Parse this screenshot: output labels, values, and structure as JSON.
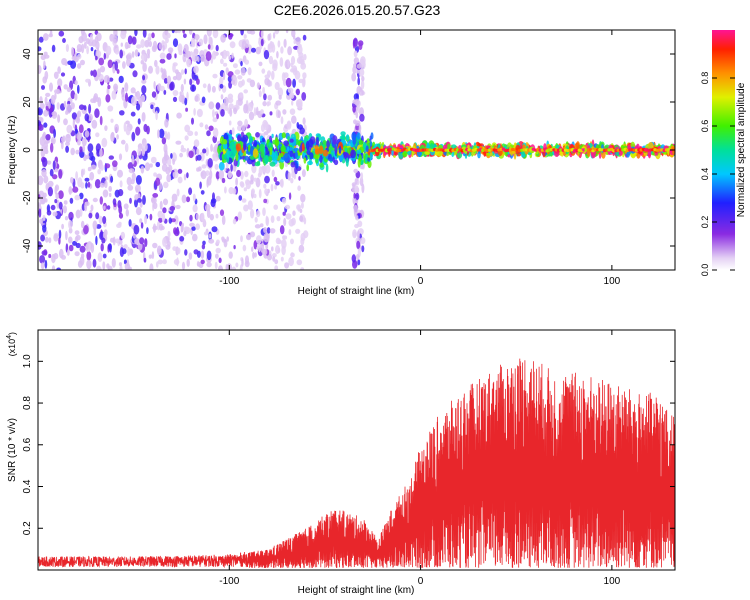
{
  "title": "C2E6.2026.015.20.57.G23",
  "colors": {
    "snr_line": "#e8262b",
    "axis": "#000000"
  },
  "chart_data": [
    {
      "type": "heatmap",
      "title": "C2E6.2026.015.20.57.G23",
      "xlabel": "Height of straight line (km)",
      "ylabel": "Frequency (Hz)",
      "xlim": [
        -200,
        133
      ],
      "ylim": [
        -50,
        50
      ],
      "xticks": [
        -100,
        0,
        100
      ],
      "yticks": [
        -40,
        -20,
        0,
        20,
        40
      ],
      "colorbar": {
        "label": "Normalized spectral amplitude",
        "range": [
          0,
          1
        ],
        "ticks": [
          "0.0",
          "0.2",
          "0.4",
          "0.6",
          "0.8"
        ]
      },
      "description_regions": [
        {
          "x_from": -200,
          "x_to": -60,
          "freq_spread": 50,
          "density": "high",
          "amplitude": 0.2
        },
        {
          "x_from": -35,
          "x_to": -30,
          "freq_spread": 50,
          "density": "low",
          "amplitude": 0.1
        },
        {
          "x_from": -105,
          "x_to": -25,
          "freq_spread": 8,
          "density": "high",
          "amplitude": 0.5
        },
        {
          "x_from": -25,
          "x_to": 133,
          "freq_spread": 3,
          "density": "high",
          "amplitude": 0.8
        }
      ]
    },
    {
      "type": "line",
      "xlabel": "Height of straight line (km)",
      "ylabel": "SNR (10 * v/v)",
      "yunit_label": "(x10",
      "yunit_exp": "4",
      "xlim": [
        -200,
        133
      ],
      "ylim": [
        0,
        1.15
      ],
      "xticks": [
        -100,
        0,
        100
      ],
      "yticks": [
        0.2,
        0.4,
        0.6,
        0.8,
        1.0
      ],
      "envelope": [
        [
          -200,
          0.06
        ],
        [
          -150,
          0.06
        ],
        [
          -100,
          0.07
        ],
        [
          -80,
          0.1
        ],
        [
          -60,
          0.2
        ],
        [
          -45,
          0.3
        ],
        [
          -30,
          0.25
        ],
        [
          -22,
          0.15
        ],
        [
          -15,
          0.3
        ],
        [
          -5,
          0.45
        ],
        [
          0,
          0.6
        ],
        [
          10,
          0.75
        ],
        [
          20,
          0.85
        ],
        [
          35,
          0.95
        ],
        [
          55,
          1.05
        ],
        [
          70,
          0.95
        ],
        [
          85,
          0.95
        ],
        [
          100,
          0.9
        ],
        [
          115,
          0.85
        ],
        [
          125,
          0.85
        ],
        [
          130,
          0.75
        ],
        [
          133,
          0.75
        ]
      ]
    }
  ]
}
